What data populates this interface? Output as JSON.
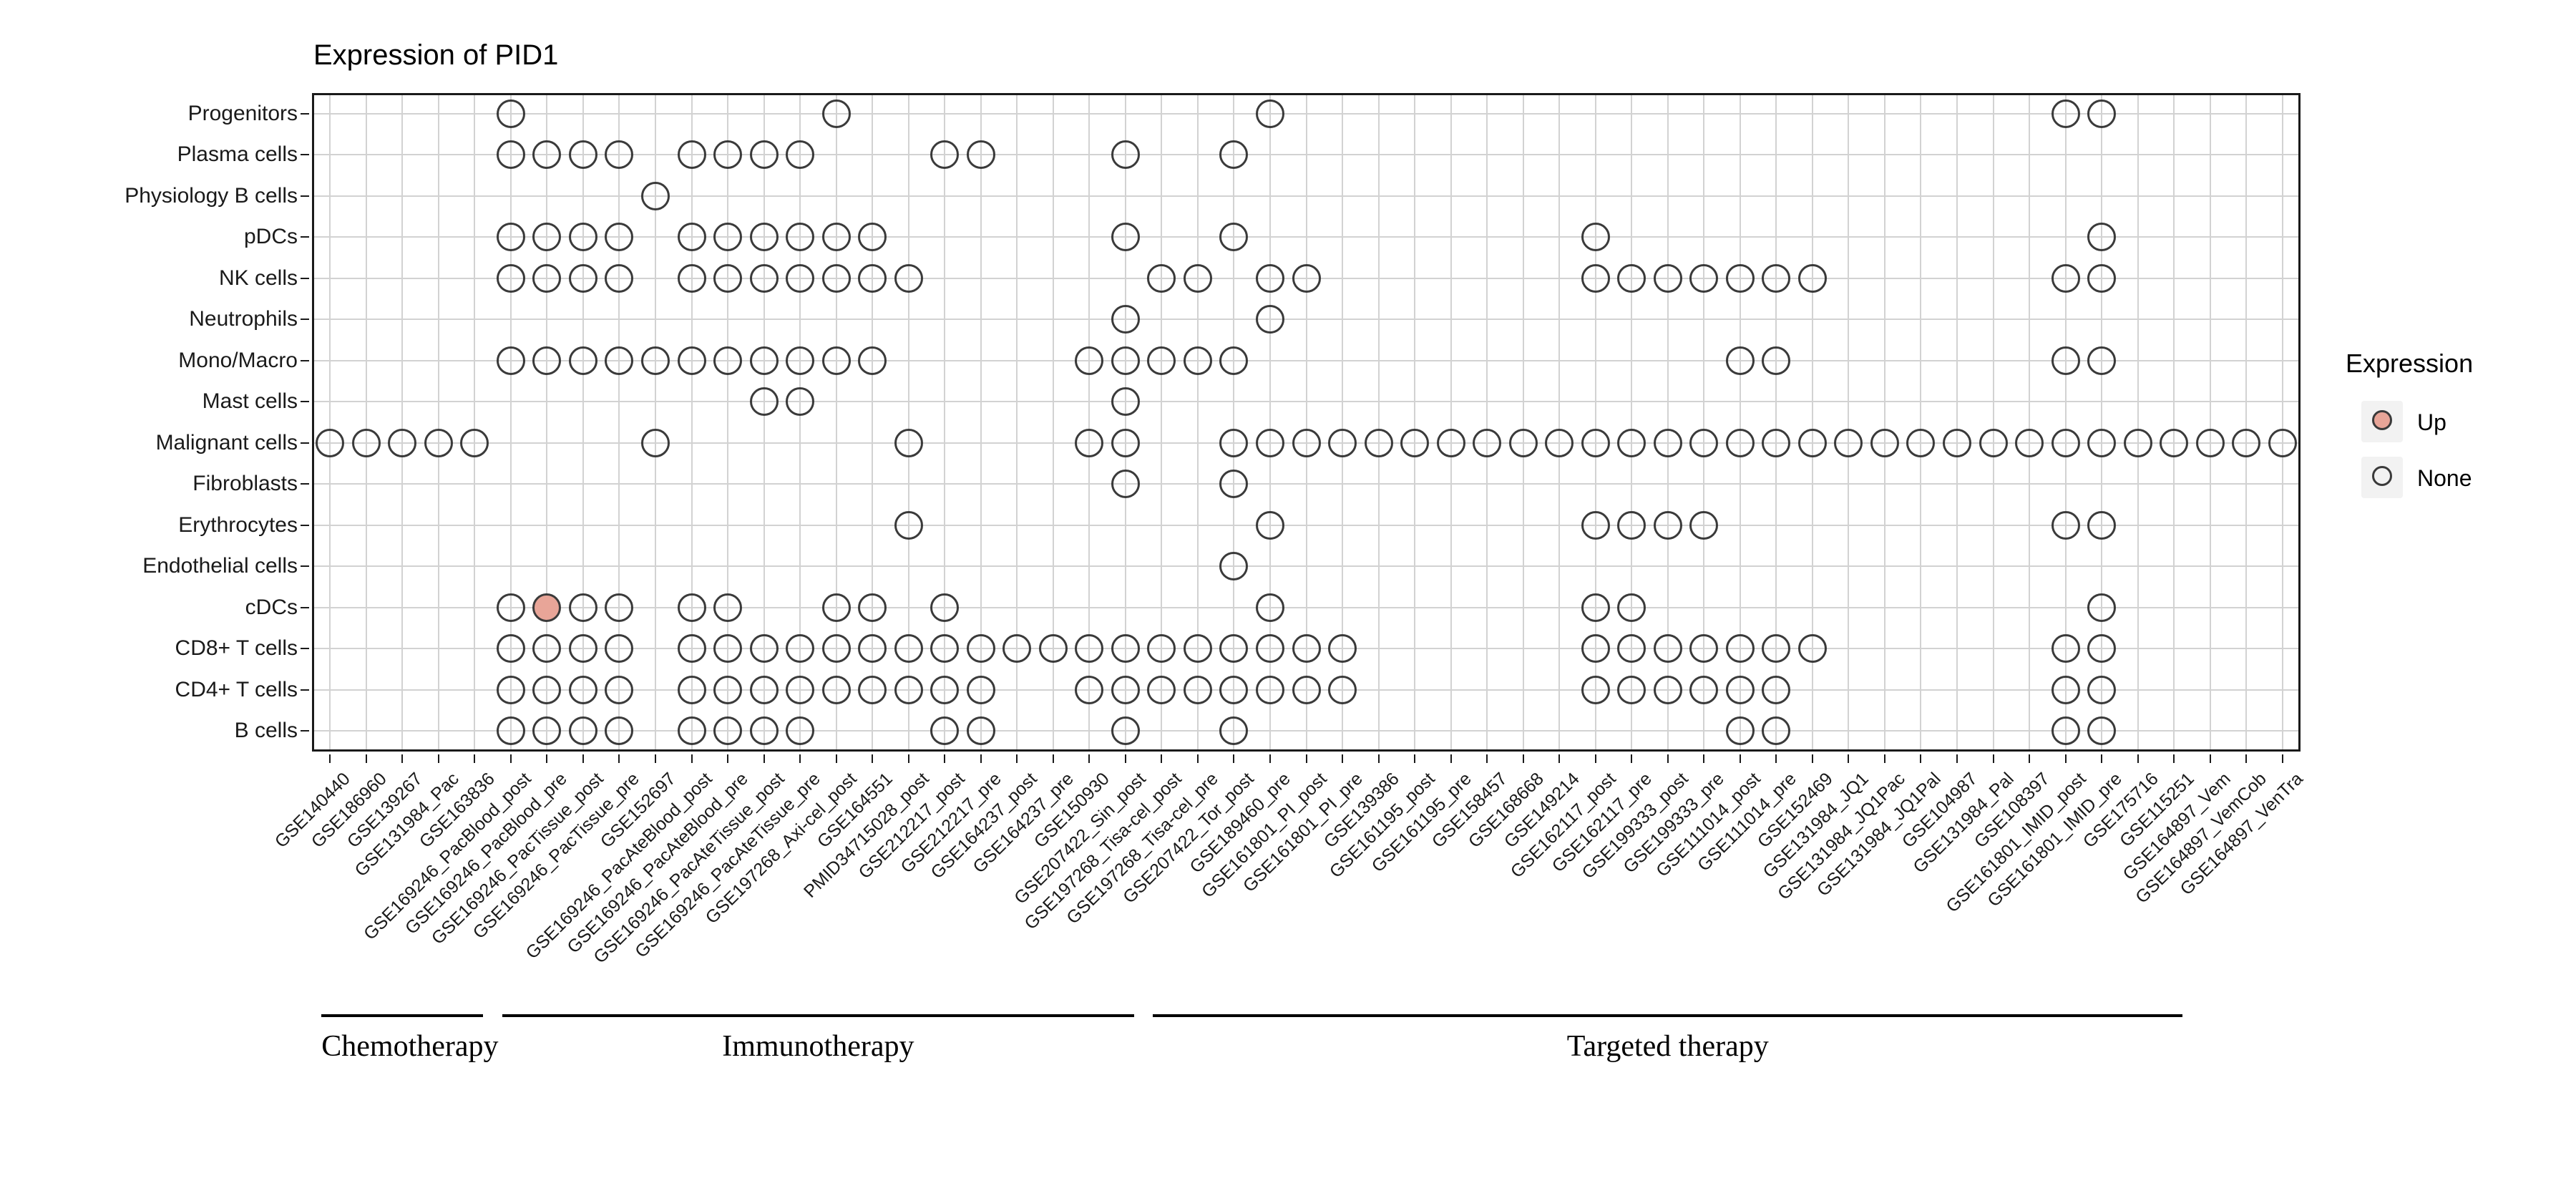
{
  "title": "Expression of PID1",
  "legend": {
    "title": "Expression",
    "items": [
      {
        "label": "Up",
        "value": "up"
      },
      {
        "label": "None",
        "value": "none"
      }
    ]
  },
  "colors": {
    "up_fill": "#E8A598",
    "dot_outline": "#3A3A3A",
    "grid_line": "#D2D2D2",
    "panel_border": "#1A1A1A",
    "axis_text": "#1A1A1A"
  },
  "chart_data": {
    "type": "scatter",
    "subtype": "presence-dot-matrix",
    "title": "Expression of PID1",
    "legend_title": "Expression",
    "legend_position": "right",
    "grid": true,
    "rows": [
      "Progenitors",
      "Plasma cells",
      "Physiology B cells",
      "pDCs",
      "NK cells",
      "Neutrophils",
      "Mono/Macro",
      "Mast cells",
      "Malignant cells",
      "Fibroblasts",
      "Erythrocytes",
      "Endothelial cells",
      "cDCs",
      "CD8+ T cells",
      "CD4+ T cells",
      "B cells"
    ],
    "columns": [
      "GSE140440",
      "GSE186960",
      "GSE139267",
      "GSE131984_Pac",
      "GSE163836",
      "GSE169246_PacBlood_post",
      "GSE169246_PacBlood_pre",
      "GSE169246_PacTissue_post",
      "GSE169246_PacTissue_pre",
      "GSE152697",
      "GSE169246_PacAteBlood_post",
      "GSE169246_PacAteBlood_pre",
      "GSE169246_PacAteTissue_post",
      "GSE169246_PacAteTissue_pre",
      "GSE197268_Axi-cel_post",
      "GSE164551",
      "PMID34715028_post",
      "GSE212217_post",
      "GSE212217_pre",
      "GSE164237_post",
      "GSE164237_pre",
      "GSE150930",
      "GSE207422_Sin_post",
      "GSE197268_Tisa-cel_post",
      "GSE197268_Tisa-cel_pre",
      "GSE207422_Tor_post",
      "GSE189460_pre",
      "GSE161801_PI_post",
      "GSE161801_PI_pre",
      "GSE139386",
      "GSE161195_post",
      "GSE161195_pre",
      "GSE158457",
      "GSE168668",
      "GSE149214",
      "GSE162117_post",
      "GSE162117_pre",
      "GSE199333_post",
      "GSE199333_pre",
      "GSE111014_post",
      "GSE111014_pre",
      "GSE152469",
      "GSE131984_JQ1",
      "GSE131984_JQ1Pac",
      "GSE131984_JQ1Pal",
      "GSE104987",
      "GSE131984_Pal",
      "GSE108397",
      "GSE161801_IMID_post",
      "GSE161801_IMID_pre",
      "GSE175716",
      "GSE115251",
      "GSE164897_Vem",
      "GSE164897_VemCob",
      "GSE164897_VenTra"
    ],
    "groups": [
      {
        "label": "Chemotherapy",
        "start": 0,
        "end": 4
      },
      {
        "label": "Immunotherapy",
        "start": 5,
        "end": 22
      },
      {
        "label": "Targeted therapy",
        "start": 23,
        "end": 51
      }
    ],
    "dots": [
      {
        "row": "Progenitors",
        "cols": [
          5,
          14,
          26,
          48,
          49
        ]
      },
      {
        "row": "Plasma cells",
        "cols": [
          5,
          6,
          7,
          8,
          10,
          11,
          12,
          13,
          17,
          18,
          22,
          25
        ]
      },
      {
        "row": "Physiology B cells",
        "cols": [
          9
        ]
      },
      {
        "row": "pDCs",
        "cols": [
          5,
          6,
          7,
          8,
          10,
          11,
          12,
          13,
          14,
          15,
          22,
          25,
          35,
          49
        ]
      },
      {
        "row": "NK cells",
        "cols": [
          5,
          6,
          7,
          8,
          10,
          11,
          12,
          13,
          14,
          15,
          16,
          23,
          24,
          26,
          27,
          35,
          36,
          37,
          38,
          39,
          40,
          41,
          48,
          49
        ]
      },
      {
        "row": "Neutrophils",
        "cols": [
          22,
          26
        ]
      },
      {
        "row": "Mono/Macro",
        "cols": [
          5,
          6,
          7,
          8,
          9,
          10,
          11,
          12,
          13,
          14,
          15,
          21,
          22,
          23,
          24,
          25,
          39,
          40,
          48,
          49
        ]
      },
      {
        "row": "Mast cells",
        "cols": [
          12,
          13,
          22
        ]
      },
      {
        "row": "Malignant cells",
        "cols": [
          0,
          1,
          2,
          3,
          4,
          9,
          16,
          21,
          22,
          25,
          26,
          27,
          28,
          29,
          30,
          31,
          32,
          33,
          34,
          35,
          36,
          37,
          38,
          39,
          40,
          41,
          42,
          43,
          44,
          45,
          46,
          47,
          48,
          49,
          50,
          51,
          52,
          53,
          54
        ]
      },
      {
        "row": "Fibroblasts",
        "cols": [
          22,
          25
        ]
      },
      {
        "row": "Erythrocytes",
        "cols": [
          16,
          26,
          35,
          36,
          37,
          38,
          48,
          49
        ]
      },
      {
        "row": "Endothelial cells",
        "cols": [
          25
        ]
      },
      {
        "row": "cDCs",
        "cols": [
          5,
          6,
          7,
          8,
          10,
          11,
          14,
          15,
          17,
          26,
          35,
          36,
          49
        ]
      },
      {
        "row": "CD8+ T cells",
        "cols": [
          5,
          6,
          7,
          8,
          10,
          11,
          12,
          13,
          14,
          15,
          16,
          17,
          18,
          19,
          20,
          21,
          22,
          23,
          24,
          25,
          26,
          27,
          28,
          35,
          36,
          37,
          38,
          39,
          40,
          41,
          48,
          49
        ]
      },
      {
        "row": "CD4+ T cells",
        "cols": [
          5,
          6,
          7,
          8,
          10,
          11,
          12,
          13,
          14,
          15,
          16,
          17,
          18,
          21,
          22,
          23,
          24,
          25,
          26,
          27,
          28,
          35,
          36,
          37,
          38,
          39,
          40,
          48,
          49
        ]
      },
      {
        "row": "B cells",
        "cols": [
          5,
          6,
          7,
          8,
          10,
          11,
          12,
          13,
          17,
          18,
          22,
          25,
          39,
          40,
          48,
          49
        ]
      }
    ],
    "up_dots": [
      {
        "row": "cDCs",
        "col": 6,
        "column": "GSE169246_PacBlood_pre"
      }
    ]
  }
}
